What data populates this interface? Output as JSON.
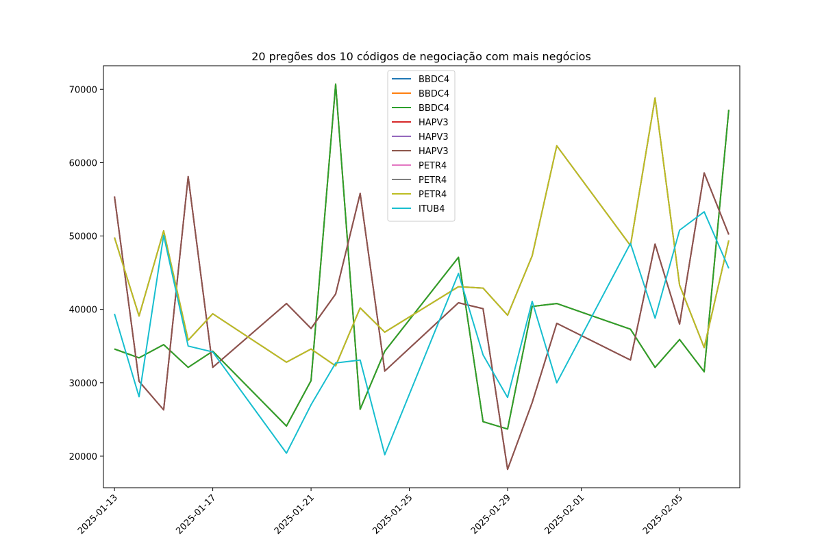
{
  "chart_data": {
    "type": "line",
    "title": "20 pregões dos 10 códigos de negociação com mais negócios",
    "xlabel": "",
    "ylabel": "",
    "x": [
      "2025-01-13",
      "2025-01-14",
      "2025-01-15",
      "2025-01-16",
      "2025-01-17",
      "2025-01-20",
      "2025-01-21",
      "2025-01-22",
      "2025-01-23",
      "2025-01-24",
      "2025-01-27",
      "2025-01-28",
      "2025-01-29",
      "2025-01-30",
      "2025-01-31",
      "2025-02-03",
      "2025-02-04",
      "2025-02-05",
      "2025-02-06",
      "2025-02-07"
    ],
    "xlim": [
      "2025-01-12",
      "2025-02-08"
    ],
    "ylim": [
      15700,
      73200
    ],
    "xticks": [
      "2025-01-13",
      "2025-01-17",
      "2025-01-21",
      "2025-01-25",
      "2025-01-29",
      "2025-02-01",
      "2025-02-05"
    ],
    "yticks": [
      20000,
      30000,
      40000,
      50000,
      60000,
      70000
    ],
    "legend_position": "top-center",
    "grid": false,
    "series": [
      {
        "name": "BBDC4",
        "color": "#1f77b4",
        "values": [
          34600,
          33400,
          35200,
          32100,
          34300,
          24100,
          30300,
          70700,
          26400,
          34300,
          47100,
          24700,
          23700,
          40400,
          40800,
          37300,
          32100,
          35900,
          31500,
          67200
        ]
      },
      {
        "name": "BBDC4",
        "color": "#ff7f0e",
        "values": [
          34600,
          33400,
          35200,
          32100,
          34300,
          24100,
          30300,
          70700,
          26400,
          34300,
          47100,
          24700,
          23700,
          40400,
          40800,
          37300,
          32100,
          35900,
          31500,
          67200
        ]
      },
      {
        "name": "BBDC4",
        "color": "#2ca02c",
        "values": [
          34600,
          33400,
          35200,
          32100,
          34300,
          24100,
          30300,
          70700,
          26400,
          34300,
          47100,
          24700,
          23700,
          40400,
          40800,
          37300,
          32100,
          35900,
          31500,
          67200
        ]
      },
      {
        "name": "HAPV3",
        "color": "#d62728",
        "values": [
          55400,
          30200,
          26300,
          58100,
          32100,
          40800,
          37400,
          42100,
          55800,
          31600,
          40900,
          40100,
          18200,
          27300,
          38100,
          33100,
          48900,
          38000,
          58600,
          50200
        ]
      },
      {
        "name": "HAPV3",
        "color": "#9467bd",
        "values": [
          55400,
          30200,
          26300,
          58100,
          32100,
          40800,
          37400,
          42100,
          55800,
          31600,
          40900,
          40100,
          18200,
          27300,
          38100,
          33100,
          48900,
          38000,
          58600,
          50200
        ]
      },
      {
        "name": "HAPV3",
        "color": "#8c564b",
        "values": [
          55400,
          30200,
          26300,
          58100,
          32100,
          40800,
          37400,
          42100,
          55800,
          31600,
          40900,
          40100,
          18200,
          27300,
          38100,
          33100,
          48900,
          38000,
          58600,
          50200
        ]
      },
      {
        "name": "PETR4",
        "color": "#e377c2",
        "values": [
          49800,
          39100,
          50700,
          35800,
          39400,
          32800,
          34600,
          32300,
          40200,
          36900,
          43100,
          42900,
          39200,
          47300,
          62300,
          48700,
          68800,
          43300,
          34800,
          49400
        ]
      },
      {
        "name": "PETR4",
        "color": "#7f7f7f",
        "values": [
          49800,
          39100,
          50700,
          35800,
          39400,
          32800,
          34600,
          32300,
          40200,
          36900,
          43100,
          42900,
          39200,
          47300,
          62300,
          48700,
          68800,
          43300,
          34800,
          49400
        ]
      },
      {
        "name": "PETR4",
        "color": "#bcbd22",
        "values": [
          49800,
          39100,
          50700,
          35800,
          39400,
          32800,
          34600,
          32300,
          40200,
          36900,
          43100,
          42900,
          39200,
          47300,
          62300,
          48700,
          68800,
          43300,
          34800,
          49400
        ]
      },
      {
        "name": "ITUB4",
        "color": "#17becf",
        "values": [
          39400,
          28100,
          50100,
          35000,
          34200,
          20400,
          27000,
          32700,
          33100,
          20200,
          44900,
          33800,
          28000,
          41100,
          30000,
          49000,
          38800,
          50800,
          53300,
          45600
        ]
      }
    ]
  }
}
